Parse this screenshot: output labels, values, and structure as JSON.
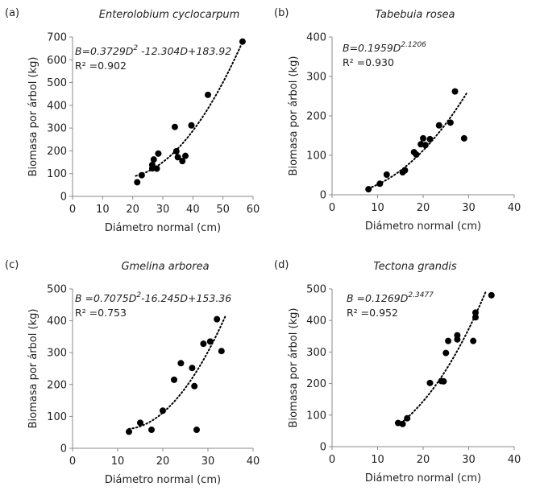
{
  "chart_data": [
    {
      "type": "scatter",
      "panel_label": "(a)",
      "title": "Enterolobium cyclocarpum",
      "xlabel": "Diámetro normal (cm)",
      "ylabel": "Biomasa por árbol (kg)",
      "xlim": [
        0,
        60
      ],
      "ylim": [
        0,
        700
      ],
      "x_ticks": [
        "0",
        "10",
        "20",
        "30",
        "40",
        "50",
        "60"
      ],
      "y_ticks": [
        "0",
        "100",
        "200",
        "300",
        "400",
        "500",
        "600",
        "700"
      ],
      "equation": {
        "text": "B=0.3729D",
        "sup": "2",
        "tail": " -12.304D+183.92"
      },
      "r2": "R² =0.902",
      "trend": {
        "kind": "poly",
        "a": 0.3729,
        "b": -12.304,
        "c": 183.92,
        "x_range": [
          21,
          57
        ]
      },
      "points": [
        {
          "x": 21.5,
          "y": 62
        },
        {
          "x": 23,
          "y": 93
        },
        {
          "x": 26.5,
          "y": 123
        },
        {
          "x": 26.5,
          "y": 138
        },
        {
          "x": 27,
          "y": 162
        },
        {
          "x": 28,
          "y": 122
        },
        {
          "x": 28.5,
          "y": 188
        },
        {
          "x": 34,
          "y": 305
        },
        {
          "x": 34.5,
          "y": 198
        },
        {
          "x": 35,
          "y": 172
        },
        {
          "x": 36.5,
          "y": 155
        },
        {
          "x": 37.5,
          "y": 178
        },
        {
          "x": 39.5,
          "y": 312
        },
        {
          "x": 45,
          "y": 446
        },
        {
          "x": 56.5,
          "y": 680
        }
      ]
    },
    {
      "type": "scatter",
      "panel_label": "(b)",
      "title": "Tabebuia rosea",
      "xlabel": "Diámetro normal (cm)",
      "ylabel": "Biomasa por árbol (kg)",
      "xlim": [
        0,
        40
      ],
      "ylim": [
        0,
        400
      ],
      "x_ticks": [
        "0",
        "10",
        "20",
        "30",
        "40"
      ],
      "y_ticks": [
        "0",
        "100",
        "200",
        "300",
        "400"
      ],
      "equation": {
        "text": "B=0.1959D",
        "sup": "2.1206",
        "tail": ""
      },
      "r2": "R² =0.930",
      "trend": {
        "kind": "power",
        "a": 0.1959,
        "b": 2.1206,
        "x_range": [
          8,
          29.5
        ]
      },
      "points": [
        {
          "x": 8,
          "y": 14
        },
        {
          "x": 10.5,
          "y": 28
        },
        {
          "x": 12,
          "y": 51
        },
        {
          "x": 15.5,
          "y": 57
        },
        {
          "x": 16,
          "y": 62
        },
        {
          "x": 18,
          "y": 108
        },
        {
          "x": 18.5,
          "y": 102
        },
        {
          "x": 19.5,
          "y": 128
        },
        {
          "x": 20,
          "y": 143
        },
        {
          "x": 20.5,
          "y": 126
        },
        {
          "x": 21.5,
          "y": 141
        },
        {
          "x": 23.5,
          "y": 176
        },
        {
          "x": 26,
          "y": 183
        },
        {
          "x": 27,
          "y": 262
        },
        {
          "x": 29,
          "y": 143
        }
      ]
    },
    {
      "type": "scatter",
      "panel_label": "(c)",
      "title": "Gmelina arborea",
      "xlabel": "Diámetro normal (cm)",
      "ylabel": "Biomasa por árbol (kg)",
      "xlim": [
        0,
        40
      ],
      "ylim": [
        0,
        500
      ],
      "x_ticks": [
        "0",
        "10",
        "20",
        "30",
        "40"
      ],
      "y_ticks": [
        "0",
        "100",
        "200",
        "300",
        "400",
        "500"
      ],
      "equation": {
        "text": "B =0.7075D",
        "sup": "2",
        "tail": "-16.245D+153.36"
      },
      "r2": "R² =0.753",
      "trend": {
        "kind": "poly",
        "a": 0.7075,
        "b": -16.245,
        "c": 153.36,
        "x_range": [
          12.5,
          34
        ]
      },
      "points": [
        {
          "x": 12.5,
          "y": 52
        },
        {
          "x": 15,
          "y": 80
        },
        {
          "x": 17.5,
          "y": 58
        },
        {
          "x": 20,
          "y": 118
        },
        {
          "x": 22.5,
          "y": 215
        },
        {
          "x": 24,
          "y": 267
        },
        {
          "x": 26.5,
          "y": 252
        },
        {
          "x": 27,
          "y": 195
        },
        {
          "x": 27.5,
          "y": 58
        },
        {
          "x": 29,
          "y": 328
        },
        {
          "x": 30.5,
          "y": 335
        },
        {
          "x": 32,
          "y": 405
        },
        {
          "x": 33,
          "y": 305
        }
      ]
    },
    {
      "type": "scatter",
      "panel_label": "(d)",
      "title": "Tectona grandis",
      "xlabel": "Diámetro normal (cm)",
      "ylabel": "Biomasa por árbol (kg)",
      "xlim": [
        0,
        40
      ],
      "ylim": [
        0,
        500
      ],
      "x_ticks": [
        "0",
        "10",
        "20",
        "30",
        "40"
      ],
      "y_ticks": [
        "0",
        "100",
        "200",
        "300",
        "400",
        "500"
      ],
      "equation": {
        "text": "B =0.1269D",
        "sup": "2.3477",
        "tail": ""
      },
      "r2": "R² =0.952",
      "trend": {
        "kind": "power",
        "a": 0.1269,
        "b": 2.3477,
        "x_range": [
          14.5,
          33.8
        ]
      },
      "points": [
        {
          "x": 14.5,
          "y": 75
        },
        {
          "x": 15.5,
          "y": 72
        },
        {
          "x": 16.5,
          "y": 90
        },
        {
          "x": 21.5,
          "y": 202
        },
        {
          "x": 24,
          "y": 208
        },
        {
          "x": 24.5,
          "y": 207
        },
        {
          "x": 25,
          "y": 297
        },
        {
          "x": 25.5,
          "y": 335
        },
        {
          "x": 27.5,
          "y": 340
        },
        {
          "x": 27.5,
          "y": 353
        },
        {
          "x": 31,
          "y": 335
        },
        {
          "x": 31.5,
          "y": 410
        },
        {
          "x": 31.5,
          "y": 425
        },
        {
          "x": 35,
          "y": 480
        }
      ]
    }
  ]
}
